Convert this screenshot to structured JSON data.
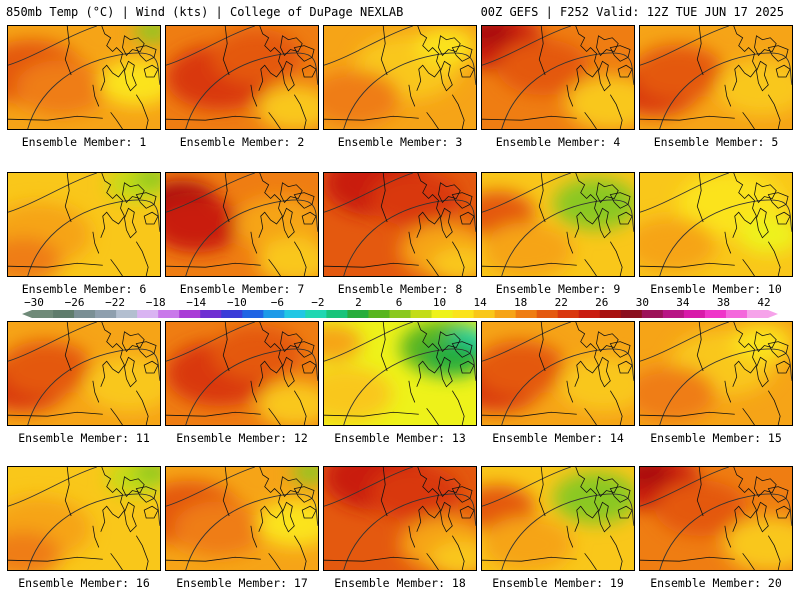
{
  "header": {
    "left": "850mb Temp (°C) | Wind (kts) | College of DuPage NEXLAB",
    "right": "00Z GEFS | F252 Valid: 12Z TUE JUN 17 2025"
  },
  "colorbar": {
    "labels": [
      "−30",
      "−26",
      "−22",
      "−18",
      "−14",
      "−10",
      "−6",
      "−2",
      "2",
      "6",
      "10",
      "14",
      "18",
      "22",
      "26",
      "30",
      "34",
      "38",
      "42"
    ],
    "colors": [
      "#6f8a78",
      "#5f7c6c",
      "#7a8f95",
      "#8e9fae",
      "#b3bfd0",
      "#d9b4f2",
      "#c979ea",
      "#a93cd6",
      "#6f2fd2",
      "#3b3cd8",
      "#2064e4",
      "#1e9ae8",
      "#22c7e4",
      "#20d7b2",
      "#18c47a",
      "#27ad3c",
      "#58b520",
      "#8ac820",
      "#c3dc18",
      "#eef21a",
      "#fbe31c",
      "#f9c71a",
      "#f6a417",
      "#ef7d12",
      "#e4590f",
      "#d9370e",
      "#c91d10",
      "#a8110f",
      "#8b0f1f",
      "#9c1258",
      "#b81585",
      "#d81aa9",
      "#ef35c9",
      "#f468dc",
      "#f6a3ea"
    ]
  },
  "members": [
    {
      "caption": "Ensemble Member: 1",
      "profile": "warm_west"
    },
    {
      "caption": "Ensemble Member: 2",
      "profile": "red_center"
    },
    {
      "caption": "Ensemble Member: 3",
      "profile": "orange_flat"
    },
    {
      "caption": "Ensemble Member: 4",
      "profile": "hot_nw"
    },
    {
      "caption": "Ensemble Member: 5",
      "profile": "red_west"
    },
    {
      "caption": "Ensemble Member: 6",
      "profile": "cool_ne"
    },
    {
      "caption": "Ensemble Member: 7",
      "profile": "hot_west"
    },
    {
      "caption": "Ensemble Member: 8",
      "profile": "hot_north"
    },
    {
      "caption": "Ensemble Member: 9",
      "profile": "green_ne"
    },
    {
      "caption": "Ensemble Member: 10",
      "profile": "yellow"
    },
    {
      "caption": "Ensemble Member: 11",
      "profile": "red_west"
    },
    {
      "caption": "Ensemble Member: 12",
      "profile": "red_center"
    },
    {
      "caption": "Ensemble Member: 13",
      "profile": "green_east"
    },
    {
      "caption": "Ensemble Member: 14",
      "profile": "red_west"
    },
    {
      "caption": "Ensemble Member: 15",
      "profile": "orange_flat"
    },
    {
      "caption": "Ensemble Member: 16",
      "profile": "cool_ne"
    },
    {
      "caption": "Ensemble Member: 17",
      "profile": "warm_west"
    },
    {
      "caption": "Ensemble Member: 18",
      "profile": "hot_north"
    },
    {
      "caption": "Ensemble Member: 19",
      "profile": "green_ne"
    },
    {
      "caption": "Ensemble Member: 20",
      "profile": "hot_nw"
    }
  ],
  "profiles": {
    "warm_west": {
      "base": "#f6a417",
      "blobs": [
        [
          "#e4590f",
          0.15,
          0.45,
          0.35
        ],
        [
          "#ef7d12",
          0.35,
          0.6,
          0.3
        ],
        [
          "#fbe31c",
          0.85,
          0.55,
          0.25
        ],
        [
          "#8ac820",
          0.95,
          0.05,
          0.12
        ]
      ]
    },
    "red_center": {
      "base": "#ef7d12",
      "blobs": [
        [
          "#d9370e",
          0.35,
          0.5,
          0.35
        ],
        [
          "#e4590f",
          0.6,
          0.3,
          0.3
        ],
        [
          "#f9c71a",
          0.85,
          0.8,
          0.25
        ]
      ]
    },
    "orange_flat": {
      "base": "#f6a417",
      "blobs": [
        [
          "#f9c71a",
          0.55,
          0.4,
          0.35
        ],
        [
          "#ef7d12",
          0.2,
          0.7,
          0.3
        ],
        [
          "#fbe31c",
          0.8,
          0.2,
          0.2
        ]
      ]
    },
    "hot_nw": {
      "base": "#ef7d12",
      "blobs": [
        [
          "#c91d10",
          0.1,
          0.15,
          0.3
        ],
        [
          "#a8110f",
          0.05,
          0.05,
          0.15
        ],
        [
          "#e4590f",
          0.4,
          0.4,
          0.3
        ],
        [
          "#f9c71a",
          0.85,
          0.75,
          0.3
        ]
      ]
    },
    "red_west": {
      "base": "#f6a417",
      "blobs": [
        [
          "#d9370e",
          0.1,
          0.6,
          0.3
        ],
        [
          "#e4590f",
          0.25,
          0.45,
          0.3
        ],
        [
          "#f9c71a",
          0.8,
          0.6,
          0.3
        ]
      ]
    },
    "cool_ne": {
      "base": "#f9c71a",
      "blobs": [
        [
          "#f6a417",
          0.2,
          0.6,
          0.35
        ],
        [
          "#c3dc18",
          0.85,
          0.1,
          0.2
        ],
        [
          "#8ac820",
          0.95,
          0.05,
          0.12
        ],
        [
          "#ef7d12",
          0.1,
          0.85,
          0.25
        ]
      ]
    },
    "hot_west": {
      "base": "#ef7d12",
      "blobs": [
        [
          "#a8110f",
          0.1,
          0.3,
          0.25
        ],
        [
          "#c91d10",
          0.2,
          0.5,
          0.3
        ],
        [
          "#f6a417",
          0.75,
          0.5,
          0.3
        ],
        [
          "#f9c71a",
          0.85,
          0.85,
          0.25
        ]
      ]
    },
    "hot_north": {
      "base": "#e4590f",
      "blobs": [
        [
          "#c91d10",
          0.35,
          0.1,
          0.35
        ],
        [
          "#d9370e",
          0.6,
          0.25,
          0.3
        ],
        [
          "#f6a417",
          0.8,
          0.75,
          0.3
        ],
        [
          "#f9c71a",
          0.9,
          0.9,
          0.2
        ]
      ]
    },
    "green_ne": {
      "base": "#f9c71a",
      "blobs": [
        [
          "#58b520",
          0.7,
          0.25,
          0.2
        ],
        [
          "#8ac820",
          0.75,
          0.3,
          0.28
        ],
        [
          "#e4590f",
          0.1,
          0.4,
          0.25
        ],
        [
          "#f6a417",
          0.3,
          0.75,
          0.3
        ]
      ]
    },
    "yellow": {
      "base": "#f9c71a",
      "blobs": [
        [
          "#fbe31c",
          0.6,
          0.3,
          0.35
        ],
        [
          "#f6a417",
          0.2,
          0.7,
          0.3
        ],
        [
          "#eef21a",
          0.85,
          0.6,
          0.2
        ]
      ]
    },
    "green_east": {
      "base": "#eef21a",
      "blobs": [
        [
          "#58b520",
          0.8,
          0.25,
          0.3
        ],
        [
          "#20d7b2",
          0.95,
          0.2,
          0.15
        ],
        [
          "#27ad3c",
          0.85,
          0.35,
          0.2
        ],
        [
          "#f9c71a",
          0.15,
          0.7,
          0.3
        ],
        [
          "#f6a417",
          0.05,
          0.2,
          0.2
        ]
      ]
    }
  }
}
